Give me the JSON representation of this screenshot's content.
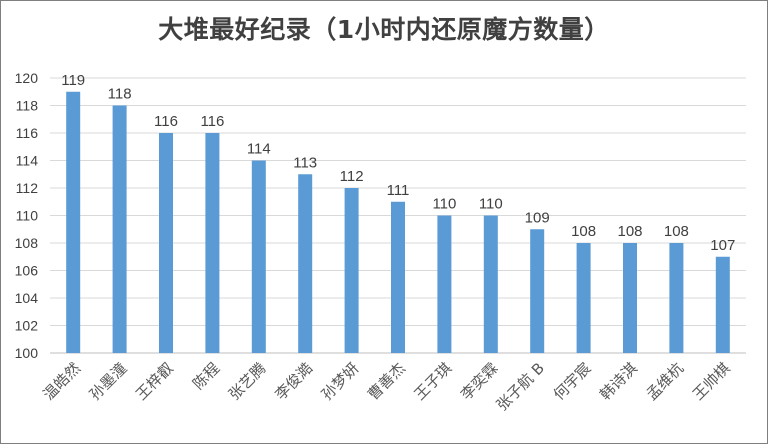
{
  "chart_data": {
    "type": "bar",
    "title": "大堆最好纪录（1小时内还原魔方数量）",
    "categories": [
      "温皓然",
      "孙墨潼",
      "王梓叡",
      "陈程",
      "张艺腾",
      "李俊澔",
      "孙梦妍",
      "曹善杰",
      "王子琪",
      "李奕霖",
      "张子航 B",
      "何宇宸",
      "韩诗淇",
      "孟维杭",
      "王帅棋"
    ],
    "values": [
      119,
      118,
      116,
      116,
      114,
      113,
      112,
      111,
      110,
      110,
      109,
      108,
      108,
      108,
      107
    ],
    "ylim": [
      100,
      120
    ],
    "yticks": [
      "100",
      "102",
      "104",
      "106",
      "108",
      "110",
      "112",
      "114",
      "116",
      "118",
      "120"
    ],
    "xlabel": "",
    "ylabel": "",
    "grid": true,
    "legend": "none",
    "bar_color": "#5b9bd5",
    "grid_color": "#d9d9d9"
  }
}
